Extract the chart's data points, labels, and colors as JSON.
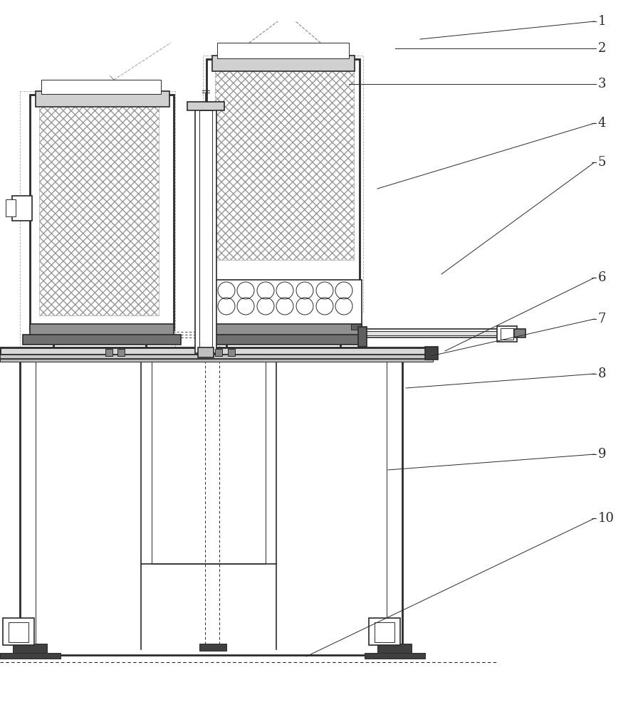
{
  "bg_color": "#ffffff",
  "line_color": "#2a2a2a",
  "label_color": "#2a2a2a",
  "lw_thin": 0.7,
  "lw_med": 1.2,
  "lw_thick": 2.0,
  "labels_info": [
    [
      "1",
      835,
      30
    ],
    [
      "2",
      835,
      68
    ],
    [
      "3",
      835,
      118
    ],
    [
      "4",
      835,
      173
    ],
    [
      "5",
      835,
      228
    ],
    [
      "6",
      835,
      390
    ],
    [
      "7",
      835,
      448
    ],
    [
      "8",
      835,
      525
    ],
    [
      "9",
      835,
      638
    ],
    [
      "10",
      835,
      728
    ]
  ],
  "leader_endpoints": [
    [
      835,
      30,
      590,
      55
    ],
    [
      835,
      68,
      555,
      68
    ],
    [
      835,
      118,
      490,
      118
    ],
    [
      835,
      173,
      530,
      265
    ],
    [
      835,
      228,
      620,
      385
    ],
    [
      835,
      390,
      625,
      493
    ],
    [
      835,
      448,
      605,
      500
    ],
    [
      835,
      525,
      570,
      545
    ],
    [
      835,
      638,
      545,
      660
    ],
    [
      835,
      728,
      430,
      922
    ]
  ]
}
